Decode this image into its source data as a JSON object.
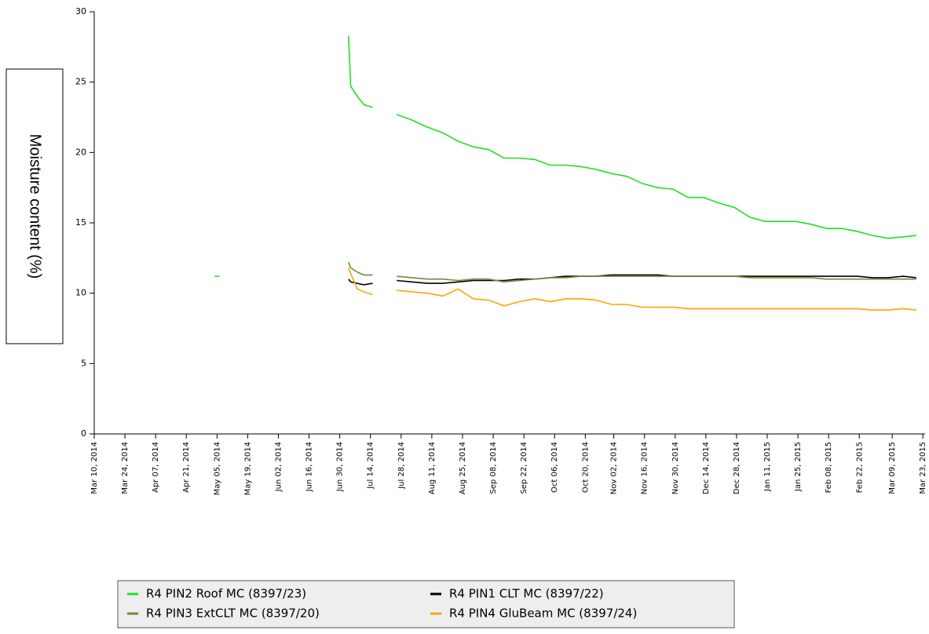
{
  "chart_data": {
    "type": "line",
    "y_label": "Moisture content (%)",
    "x": [
      "2014-05-05",
      "2014-05-06",
      "2014-07-04",
      "2014-07-05",
      "2014-07-08",
      "2014-07-11",
      "2014-07-15",
      "2014-07-20",
      "2014-07-26",
      "2014-08-02",
      "2014-08-09",
      "2014-08-16",
      "2014-08-23",
      "2014-08-30",
      "2014-09-06",
      "2014-09-13",
      "2014-09-20",
      "2014-09-27",
      "2014-10-04",
      "2014-10-11",
      "2014-10-18",
      "2014-10-25",
      "2014-11-01",
      "2014-11-08",
      "2014-11-15",
      "2014-11-22",
      "2014-11-29",
      "2014-12-06",
      "2014-12-13",
      "2014-12-20",
      "2014-12-27",
      "2015-01-03",
      "2015-01-10",
      "2015-01-17",
      "2015-01-24",
      "2015-01-31",
      "2015-02-07",
      "2015-02-14",
      "2015-02-21",
      "2015-02-28",
      "2015-03-07",
      "2015-03-14",
      "2015-03-20"
    ],
    "series": [
      {
        "name": "R4 PIN2 Roof MC (8397/23)",
        "color": "#22e022",
        "values": [
          11.2,
          null,
          28.3,
          24.7,
          24.0,
          23.4,
          23.2,
          null,
          22.7,
          22.3,
          21.8,
          21.4,
          20.8,
          20.4,
          20.2,
          19.6,
          19.6,
          19.5,
          19.1,
          19.1,
          19.0,
          18.8,
          18.5,
          18.3,
          17.8,
          17.5,
          17.4,
          16.8,
          16.8,
          16.4,
          16.1,
          15.4,
          15.1,
          15.1,
          15.1,
          14.9,
          14.6,
          14.6,
          14.4,
          14.1,
          13.9,
          14.0,
          14.1
        ]
      },
      {
        "name": "R4 PIN1 CLT MC (8397/22)",
        "color": "#000000",
        "values": [
          null,
          null,
          11.0,
          10.8,
          10.7,
          10.6,
          10.7,
          null,
          10.9,
          10.8,
          10.7,
          10.7,
          10.8,
          10.9,
          10.9,
          10.9,
          11.0,
          11.0,
          11.1,
          11.2,
          11.2,
          11.2,
          11.3,
          11.3,
          11.3,
          11.3,
          11.2,
          11.2,
          11.2,
          11.2,
          11.2,
          11.2,
          11.2,
          11.2,
          11.2,
          11.2,
          11.2,
          11.2,
          11.2,
          11.1,
          11.1,
          11.2,
          11.1
        ]
      },
      {
        "name": "R4 PIN3 ExtCLT MC (8397/20)",
        "color": "#6b8e3a",
        "values": [
          null,
          null,
          12.2,
          11.8,
          11.5,
          11.3,
          11.3,
          null,
          11.2,
          11.1,
          11.0,
          11.0,
          10.9,
          11.0,
          11.0,
          10.8,
          10.9,
          11.0,
          11.1,
          11.1,
          11.2,
          11.2,
          11.2,
          11.2,
          11.2,
          11.2,
          11.2,
          11.2,
          11.2,
          11.2,
          11.2,
          11.1,
          11.1,
          11.1,
          11.1,
          11.1,
          11.0,
          11.0,
          11.0,
          11.0,
          11.0,
          11.0,
          11.0
        ]
      },
      {
        "name": "R4 PIN4 GluBeam MC (8397/24)",
        "color": "#ffa500",
        "values": [
          null,
          null,
          11.8,
          11.4,
          10.3,
          10.1,
          9.9,
          null,
          10.2,
          10.1,
          10.0,
          9.8,
          10.3,
          9.6,
          9.5,
          9.1,
          9.4,
          9.6,
          9.4,
          9.6,
          9.6,
          9.5,
          9.2,
          9.2,
          9.0,
          9.0,
          9.0,
          8.9,
          8.9,
          8.9,
          8.9,
          8.9,
          8.9,
          8.9,
          8.9,
          8.9,
          8.9,
          8.9,
          8.9,
          8.8,
          8.8,
          8.9,
          8.8
        ]
      }
    ],
    "xlim": [
      "2014-03-10",
      "2015-03-24"
    ],
    "xticks": [
      {
        "value": "2014-03-10",
        "label": "Mar 10, 2014"
      },
      {
        "value": "2014-03-24",
        "label": "Mar 24, 2014"
      },
      {
        "value": "2014-04-07",
        "label": "Apr 07, 2014"
      },
      {
        "value": "2014-04-21",
        "label": "Apr 21, 2014"
      },
      {
        "value": "2014-05-05",
        "label": "May 05, 2014"
      },
      {
        "value": "2014-05-19",
        "label": "May 19, 2014"
      },
      {
        "value": "2014-06-02",
        "label": "Jun 02, 2014"
      },
      {
        "value": "2014-06-16",
        "label": "Jun 16, 2014"
      },
      {
        "value": "2014-06-30",
        "label": "Jun 30, 2014"
      },
      {
        "value": "2014-07-14",
        "label": "Jul 14, 2014"
      },
      {
        "value": "2014-07-28",
        "label": "Jul 28, 2014"
      },
      {
        "value": "2014-08-11",
        "label": "Aug 11, 2014"
      },
      {
        "value": "2014-08-25",
        "label": "Aug 25, 2014"
      },
      {
        "value": "2014-09-08",
        "label": "Sep 08, 2014"
      },
      {
        "value": "2014-09-22",
        "label": "Sep 22, 2014"
      },
      {
        "value": "2014-10-06",
        "label": "Oct 06, 2014"
      },
      {
        "value": "2014-10-20",
        "label": "Oct 20, 2014"
      },
      {
        "value": "2014-11-02",
        "label": "Nov 02, 2014"
      },
      {
        "value": "2014-11-16",
        "label": "Nov 16, 2014"
      },
      {
        "value": "2014-11-30",
        "label": "Nov 30, 2014"
      },
      {
        "value": "2014-12-14",
        "label": "Dec 14, 2014"
      },
      {
        "value": "2014-12-28",
        "label": "Dec 28, 2014"
      },
      {
        "value": "2015-01-11",
        "label": "Jan 11, 2015"
      },
      {
        "value": "2015-01-25",
        "label": "Jan 25, 2015"
      },
      {
        "value": "2015-02-08",
        "label": "Feb 08, 2015"
      },
      {
        "value": "2015-02-22",
        "label": "Feb 22, 2015"
      },
      {
        "value": "2015-03-09",
        "label": "Mar 09, 2015"
      },
      {
        "value": "2015-03-23",
        "label": "Mar 23, 2015"
      }
    ],
    "ylim": [
      0,
      30
    ],
    "yticks": [
      0,
      5,
      10,
      15,
      20,
      25,
      30
    ]
  }
}
